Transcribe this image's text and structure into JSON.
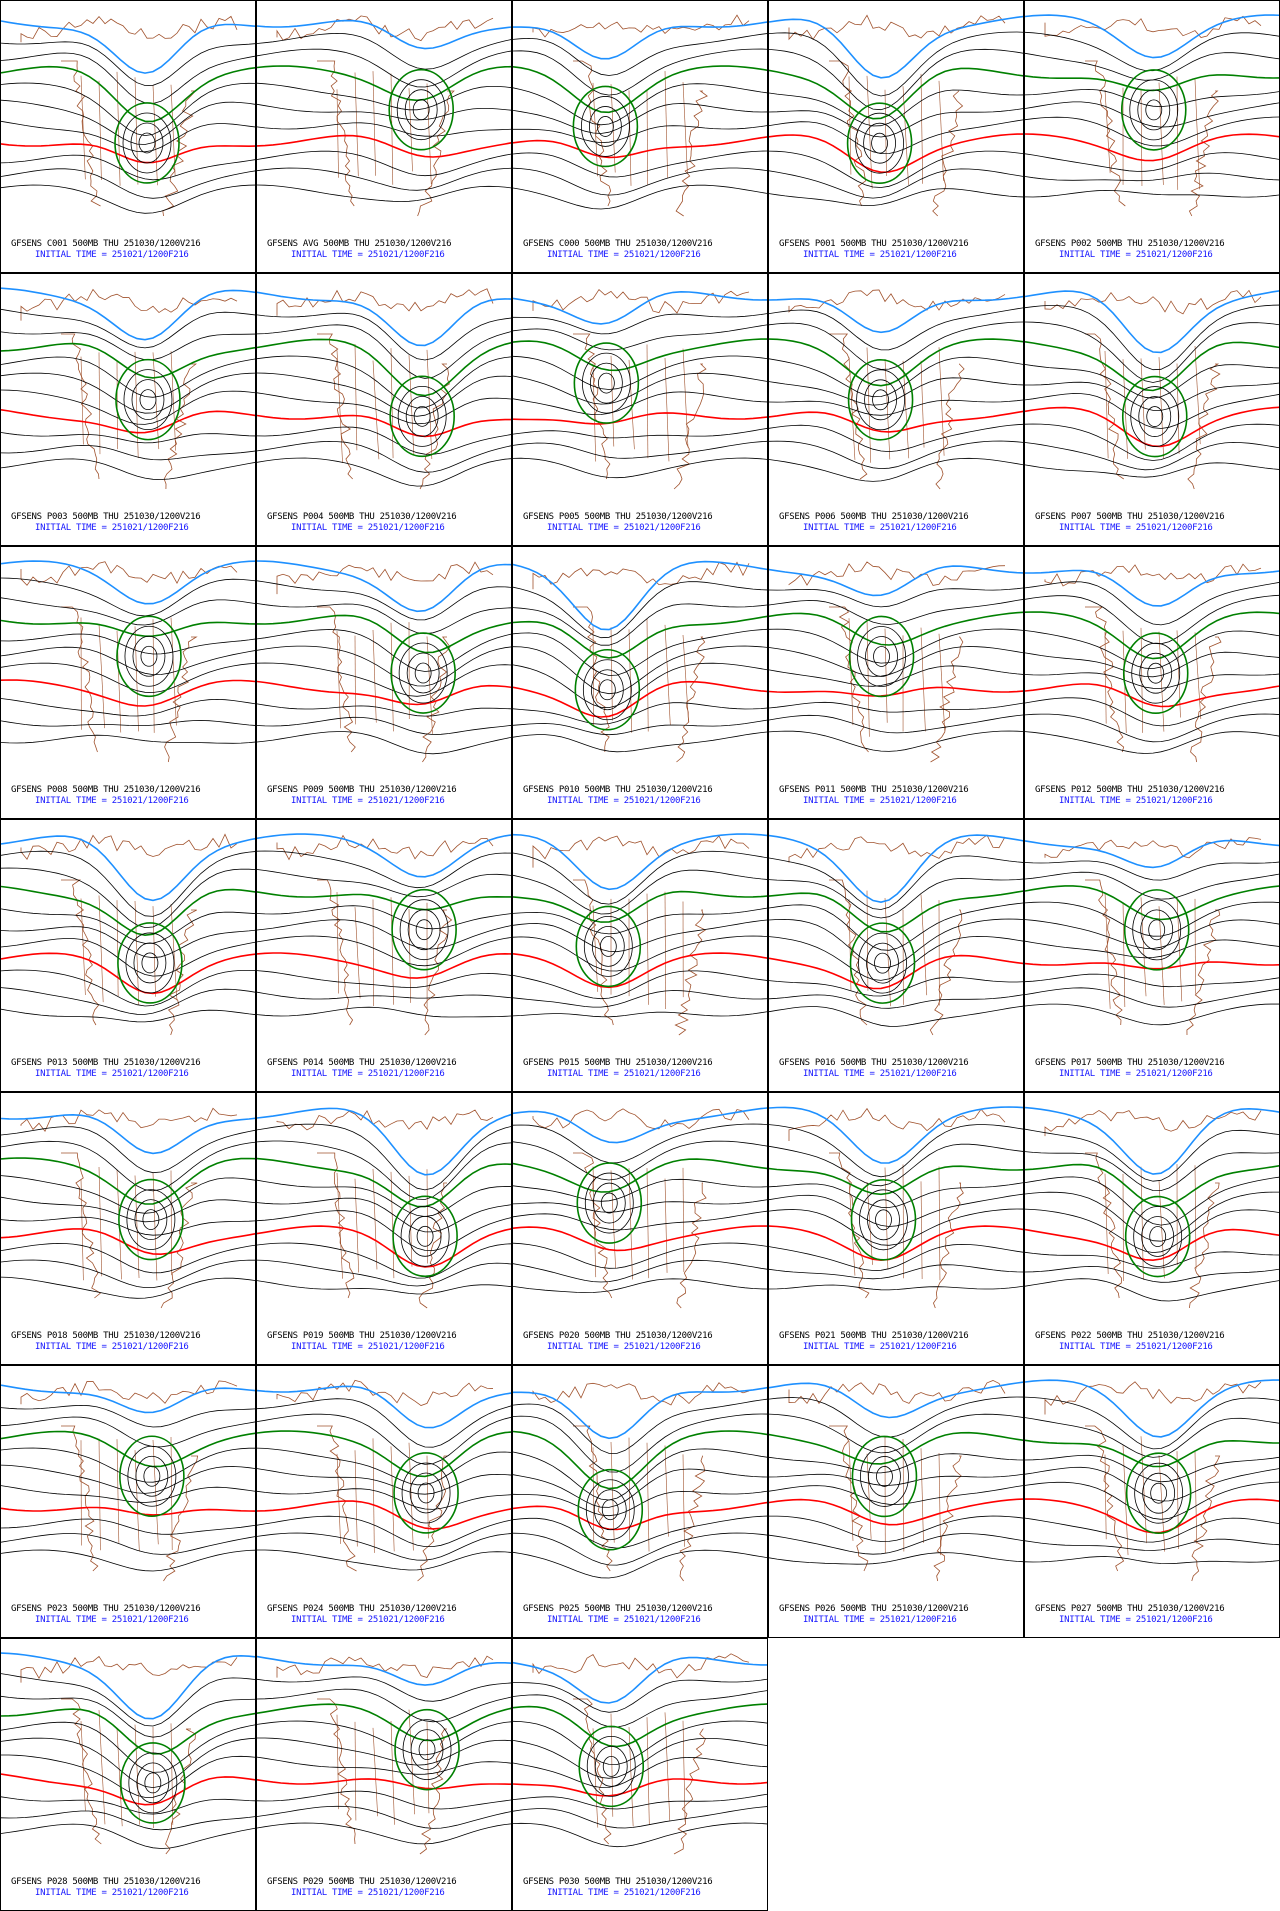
{
  "panels": [
    {
      "label": "GFSENS C001 500MB THU 251030/1200V216",
      "init": "INITIAL TIME = 251021/1200F216"
    },
    {
      "label": "GFSENS AVG 500MB THU 251030/1200V216",
      "init": "INITIAL TIME = 251021/1200F216"
    },
    {
      "label": "GFSENS C000 500MB THU 251030/1200V216",
      "init": "INITIAL TIME = 251021/1200F216"
    },
    {
      "label": "GFSENS P001 500MB THU 251030/1200V216",
      "init": "INITIAL TIME = 251021/1200F216"
    },
    {
      "label": "GFSENS P002 500MB THU 251030/1200V216",
      "init": "INITIAL TIME = 251021/1200F216"
    },
    {
      "label": "GFSENS P003 500MB THU 251030/1200V216",
      "init": "INITIAL TIME = 251021/1200F216"
    },
    {
      "label": "GFSENS P004 500MB THU 251030/1200V216",
      "init": "INITIAL TIME = 251021/1200F216"
    },
    {
      "label": "GFSENS P005 500MB THU 251030/1200V216",
      "init": "INITIAL TIME = 251021/1200F216"
    },
    {
      "label": "GFSENS P006 500MB THU 251030/1200V216",
      "init": "INITIAL TIME = 251021/1200F216"
    },
    {
      "label": "GFSENS P007 500MB THU 251030/1200V216",
      "init": "INITIAL TIME = 251021/1200F216"
    },
    {
      "label": "GFSENS P008 500MB THU 251030/1200V216",
      "init": "INITIAL TIME = 251021/1200F216"
    },
    {
      "label": "GFSENS P009 500MB THU 251030/1200V216",
      "init": "INITIAL TIME = 251021/1200F216"
    },
    {
      "label": "GFSENS P010 500MB THU 251030/1200V216",
      "init": "INITIAL TIME = 251021/1200F216"
    },
    {
      "label": "GFSENS P011 500MB THU 251030/1200V216",
      "init": "INITIAL TIME = 251021/1200F216"
    },
    {
      "label": "GFSENS P012 500MB THU 251030/1200V216",
      "init": "INITIAL TIME = 251021/1200F216"
    },
    {
      "label": "GFSENS P013 500MB THU 251030/1200V216",
      "init": "INITIAL TIME = 251021/1200F216"
    },
    {
      "label": "GFSENS P014 500MB THU 251030/1200V216",
      "init": "INITIAL TIME = 251021/1200F216"
    },
    {
      "label": "GFSENS P015 500MB THU 251030/1200V216",
      "init": "INITIAL TIME = 251021/1200F216"
    },
    {
      "label": "GFSENS P016 500MB THU 251030/1200V216",
      "init": "INITIAL TIME = 251021/1200F216"
    },
    {
      "label": "GFSENS P017 500MB THU 251030/1200V216",
      "init": "INITIAL TIME = 251021/1200F216"
    },
    {
      "label": "GFSENS P018 500MB THU 251030/1200V216",
      "init": "INITIAL TIME = 251021/1200F216"
    },
    {
      "label": "GFSENS P019 500MB THU 251030/1200V216",
      "init": "INITIAL TIME = 251021/1200F216"
    },
    {
      "label": "GFSENS P020 500MB THU 251030/1200V216",
      "init": "INITIAL TIME = 251021/1200F216"
    },
    {
      "label": "GFSENS P021 500MB THU 251030/1200V216",
      "init": "INITIAL TIME = 251021/1200F216"
    },
    {
      "label": "GFSENS P022 500MB THU 251030/1200V216",
      "init": "INITIAL TIME = 251021/1200F216"
    },
    {
      "label": "GFSENS P023 500MB THU 251030/1200V216",
      "init": "INITIAL TIME = 251021/1200F216"
    },
    {
      "label": "GFSENS P024 500MB THU 251030/1200V216",
      "init": "INITIAL TIME = 251021/1200F216"
    },
    {
      "label": "GFSENS P025 500MB THU 251030/1200V216",
      "init": "INITIAL TIME = 251021/1200F216"
    },
    {
      "label": "GFSENS P026 500MB THU 251030/1200V216",
      "init": "INITIAL TIME = 251021/1200F216"
    },
    {
      "label": "GFSENS P027 500MB THU 251030/1200V216",
      "init": "INITIAL TIME = 251021/1200F216"
    },
    {
      "label": "GFSENS P028 500MB THU 251030/1200V216",
      "init": "INITIAL TIME = 251021/1200F216"
    },
    {
      "label": "GFSENS P029 500MB THU 251030/1200V216",
      "init": "INITIAL TIME = 251021/1200F216"
    },
    {
      "label": "GFSENS P030 500MB THU 251030/1200V216",
      "init": "INITIAL TIME = 251021/1200F216"
    }
  ]
}
